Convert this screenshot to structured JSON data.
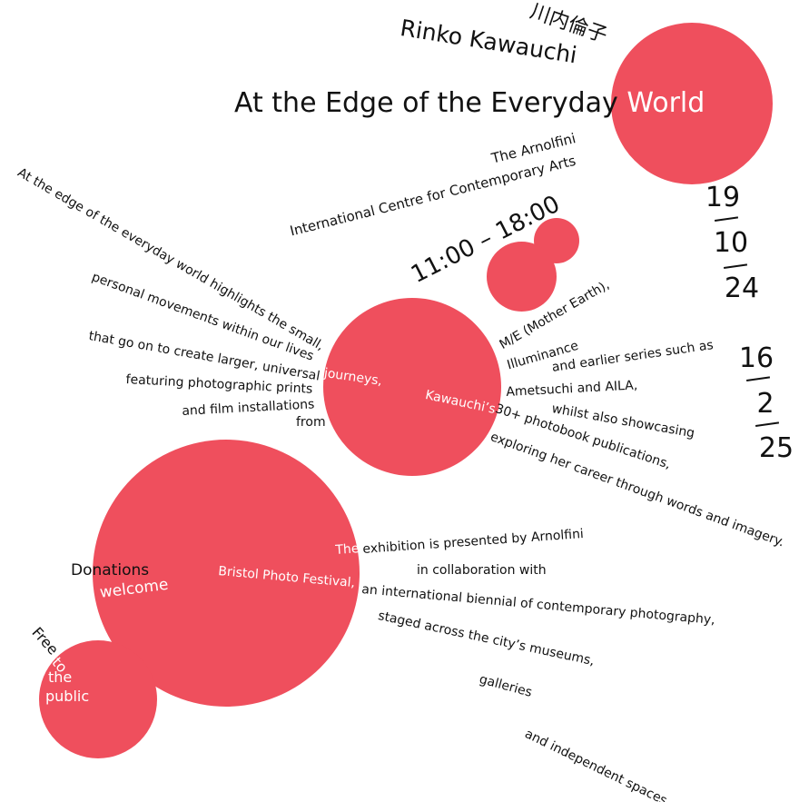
{
  "colors": {
    "accent": "#ef4f5d",
    "ink": "#111111",
    "background": "#ffffff"
  },
  "header": {
    "artist_name": "Rinko Kawauchi",
    "artist_name_jp": "川内倫子",
    "title_dark": "At the Edge of the Everyday",
    "title_light": "World"
  },
  "venue": {
    "name": "The Arnolfini",
    "subtitle": "International Centre for Contemporary Arts"
  },
  "hours": "11:00 – 18:00",
  "dates": {
    "start": {
      "day": "19",
      "month": "10",
      "year": "24"
    },
    "end": {
      "day": "16",
      "month": "2",
      "year": "25"
    }
  },
  "description": {
    "lines": [
      "At the edge of the everyday world highlights the small,",
      "personal movements within our lives",
      "that go on to create larger, universal",
      "journeys,",
      "featuring photographic prints",
      "and film installations",
      "from",
      "Kawauchi’s",
      "M/E (Mother Earth),",
      "Illuminance",
      "and earlier series such as",
      "Ametsuchi and AILA,",
      "whilst also showcasing",
      "30+ photobook publications,",
      "exploring her career through words and imagery."
    ]
  },
  "presentation": {
    "lines": [
      "The",
      "exhibition is presented by Arnolfini",
      "in collaboration with",
      "Bristol Photo Festival,",
      "an international biennial of contemporary photography,",
      "staged across the city’s museums,",
      "galleries",
      "and independent spaces."
    ]
  },
  "admission": {
    "donations_1": "Donations",
    "donations_2": "welcome",
    "free_1": "Free",
    "free_2": "to",
    "free_3": "the",
    "free_4": "public"
  }
}
